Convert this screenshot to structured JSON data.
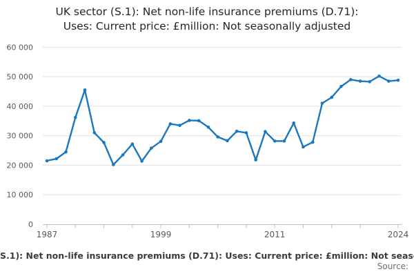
{
  "title": {
    "line1": "UK sector (S.1): Net non-life insurance premiums (D.71):",
    "line2": "Uses: Current price: £million: Not seasonally adjusted"
  },
  "colors": {
    "line": "#1878bf",
    "grid": "#e3e3e3",
    "axis": "#abc3d8",
    "title_text": "#262626",
    "axis_label_text": "#595959",
    "caption_text": "#3c3c3c",
    "source_text": "#6f6f6f"
  },
  "chart_data": {
    "type": "line",
    "title": "UK sector (S.1): Net non-life insurance premiums (D.71): Uses: Current price: £million: Not seasonally adjusted",
    "x": [
      1987,
      1988,
      1989,
      1990,
      1991,
      1992,
      1993,
      1994,
      1995,
      1996,
      1997,
      1998,
      1999,
      2000,
      2001,
      2002,
      2003,
      2004,
      2005,
      2006,
      2007,
      2008,
      2009,
      2010,
      2011,
      2012,
      2013,
      2014,
      2015,
      2016,
      2017,
      2018,
      2019,
      2020,
      2021,
      2022,
      2023,
      2024
    ],
    "values": [
      21500,
      22200,
      24500,
      36200,
      45500,
      31000,
      27700,
      20200,
      23500,
      27200,
      21400,
      25800,
      28100,
      34000,
      33500,
      35200,
      35100,
      32900,
      29600,
      28300,
      31500,
      31000,
      21800,
      31400,
      28200,
      28200,
      34300,
      26200,
      27800,
      41000,
      43000,
      46700,
      49000,
      48500,
      48300,
      50200,
      48500,
      48800
    ],
    "xlabel": "",
    "ylabel": "",
    "ylim": [
      0,
      60000
    ],
    "xlim": [
      1987,
      2024
    ],
    "grid": true,
    "legend": "none",
    "marker": "circle",
    "ytick_labels": [
      "0",
      "10 000",
      "20 000",
      "30 000",
      "40 000",
      "50 000",
      "60 000"
    ],
    "xtick_labels": [
      "1987",
      "1999",
      "2011",
      "2024"
    ],
    "minor_tick_years": [
      1987,
      1990,
      1993,
      1996,
      1999,
      2002,
      2005,
      2008,
      2011,
      2014,
      2017,
      2020,
      2024
    ]
  },
  "footer": {
    "caption": "S.1): Net non-life insurance premiums (D.71): Uses: Current price: £million: Not seaso",
    "source_label": "Source:"
  }
}
